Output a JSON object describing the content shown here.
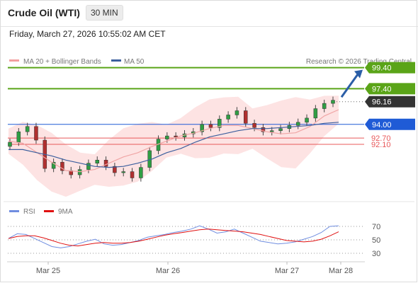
{
  "header": {
    "title": "Crude Oil (WTI)",
    "timeframe": "30 MIN"
  },
  "timestamp": "Friday, March 27, 2026 10:55:02 AM CET",
  "legend": {
    "ma20": "MA 20 + Bollinger Bands",
    "ma50": "MA 50",
    "rsi": "RSI",
    "rsi_ma": "9MA"
  },
  "credit": "Research © 2026 Trading Central",
  "colors": {
    "target": "#5aa418",
    "pivot": "#1f5bd6",
    "support": "#e8585a",
    "last": "#333333",
    "ma50": "#3c5f9e",
    "bb_fill": "#fde3e3",
    "rsi": "#6f8de0",
    "rsi_ma": "#e01010",
    "arrow": "#2b5ea7"
  },
  "chart_data": [
    {
      "type": "candlestick",
      "levels": [
        {
          "value": 99.4,
          "label": "99.40",
          "kind": "target"
        },
        {
          "value": 97.4,
          "label": "97.40",
          "kind": "target"
        },
        {
          "value": 96.16,
          "label": "96.16",
          "kind": "last"
        },
        {
          "value": 94.0,
          "label": "94.00",
          "kind": "pivot"
        },
        {
          "value": 92.7,
          "label": "92.70",
          "kind": "support"
        },
        {
          "value": 92.1,
          "label": "92.10",
          "kind": "support"
        }
      ],
      "x_ticks": [
        "Mar 25",
        "Mar 26",
        "Mar 27",
        "Mar 28"
      ],
      "series": [
        {
          "name": "MA 20 + Bollinger Bands",
          "values": [
            92.4,
            92.2,
            91.3,
            90.4,
            89.6,
            89.5,
            89.7,
            90.3,
            90.9,
            91.3,
            91.9,
            92.4,
            92.9,
            93.2,
            93.6,
            93.9,
            93.9,
            93.6,
            93.3,
            93.1,
            93.2,
            93.8,
            94.8,
            95.4
          ]
        },
        {
          "name": "MA 50",
          "values": [
            91.6,
            91.6,
            91.3,
            91.0,
            90.6,
            90.3,
            90.0,
            89.9,
            90.0,
            90.3,
            90.7,
            91.3,
            91.7,
            92.3,
            92.8,
            93.1,
            93.4,
            93.6,
            93.6,
            93.7,
            93.8,
            93.9,
            94.1,
            94.2
          ]
        }
      ],
      "closes": [
        92.3,
        93.3,
        93.8,
        92.5,
        89.8,
        90.4,
        89.6,
        89.2,
        89.7,
        90.3,
        90.6,
        90.0,
        89.4,
        89.5,
        88.9,
        89.9,
        91.5,
        92.6,
        92.9,
        92.8,
        93.1,
        93.3,
        94.0,
        93.7,
        94.5,
        94.9,
        95.3,
        94.1,
        93.7,
        93.3,
        93.4,
        93.6,
        93.9,
        94.2,
        94.6,
        95.5,
        96.0,
        96.3
      ]
    },
    {
      "type": "line",
      "y_ticks": [
        70,
        50,
        30
      ],
      "series": [
        {
          "name": "RSI",
          "values": [
            52,
            59,
            58,
            52,
            46,
            40,
            38,
            40,
            44,
            48,
            51,
            44,
            42,
            43,
            46,
            49,
            54,
            56,
            58,
            61,
            63,
            66,
            71,
            66,
            60,
            62,
            66,
            60,
            54,
            48,
            46,
            44,
            45,
            47,
            51,
            55,
            61,
            70,
            71
          ]
        },
        {
          "name": "9MA",
          "values": [
            52,
            55,
            56,
            56,
            53,
            49,
            45,
            42,
            41,
            43,
            45,
            46,
            45,
            45,
            46,
            48,
            51,
            54,
            57,
            59,
            61,
            63,
            65,
            66,
            65,
            64,
            63,
            62,
            60,
            58,
            55,
            52,
            49,
            48,
            47,
            48,
            51,
            56,
            62
          ]
        }
      ]
    }
  ]
}
